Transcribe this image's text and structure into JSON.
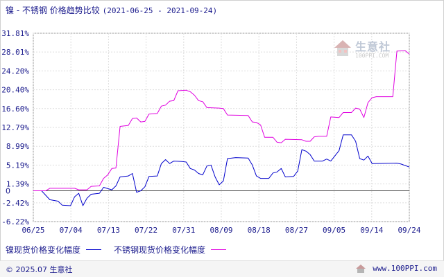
{
  "header": {
    "title": "镍 - 不锈钢 价格趋势比较",
    "date_range": "(2021-06-25 - 2021-09-24)"
  },
  "watermark": {
    "brand": "生意社",
    "url": "100PPI.COM"
  },
  "legend": {
    "items": [
      {
        "label": "镍现货价格变化幅度",
        "color": "#0000cc"
      },
      {
        "label": "不锈钢现货价格变化幅度",
        "color": "#e000e0"
      }
    ]
  },
  "footer": {
    "copyright": "© 2025.07 生意社",
    "site": "www.100PPI.com"
  },
  "chart_data": {
    "type": "line",
    "ylim": [
      -6.22,
      31.81
    ],
    "y_ticks": [
      "31.81%",
      "28.01%",
      "24.20%",
      "20.40%",
      "16.60%",
      "12.79%",
      "8.99%",
      "5.19%",
      "1.39%",
      "-2.42%",
      "-6.22%"
    ],
    "y_tick_values": [
      31.81,
      28.01,
      24.2,
      20.4,
      16.6,
      12.79,
      8.99,
      5.19,
      1.39,
      -2.42,
      -6.22
    ],
    "zero_label": "0",
    "x_ticks": [
      "06/25",
      "07/04",
      "07/13",
      "07/22",
      "07/31",
      "08/09",
      "08/18",
      "08/27",
      "09/05",
      "09/14",
      "09/24"
    ],
    "x_range": [
      "2021-06-25",
      "2021-09-24"
    ],
    "grid": true,
    "series": [
      {
        "name": "镍现货价格变化幅度",
        "color": "#0000cc",
        "points": [
          [
            "2021-06-25",
            0
          ],
          [
            "2021-06-27",
            0
          ],
          [
            "2021-06-29",
            -1.8
          ],
          [
            "2021-07-01",
            -2.1
          ],
          [
            "2021-07-02",
            -2.9
          ],
          [
            "2021-07-04",
            -3.0
          ],
          [
            "2021-07-05",
            -1.2
          ],
          [
            "2021-07-06",
            -0.5
          ],
          [
            "2021-07-07",
            -3.0
          ],
          [
            "2021-07-08",
            -1.5
          ],
          [
            "2021-07-09",
            -0.7
          ],
          [
            "2021-07-11",
            -0.5
          ],
          [
            "2021-07-12",
            0.7
          ],
          [
            "2021-07-14",
            0.2
          ],
          [
            "2021-07-15",
            1.0
          ],
          [
            "2021-07-16",
            2.8
          ],
          [
            "2021-07-18",
            3.0
          ],
          [
            "2021-07-19",
            3.5
          ],
          [
            "2021-07-20",
            -0.3
          ],
          [
            "2021-07-21",
            0
          ],
          [
            "2021-07-22",
            0.8
          ],
          [
            "2021-07-23",
            2.9
          ],
          [
            "2021-07-25",
            3.0
          ],
          [
            "2021-07-26",
            5.5
          ],
          [
            "2021-07-27",
            6.3
          ],
          [
            "2021-07-28",
            5.5
          ],
          [
            "2021-07-29",
            6.0
          ],
          [
            "2021-07-31",
            5.9
          ],
          [
            "2021-08-01",
            5.8
          ],
          [
            "2021-08-02",
            4.5
          ],
          [
            "2021-08-03",
            4.2
          ],
          [
            "2021-08-04",
            3.5
          ],
          [
            "2021-08-05",
            3.2
          ],
          [
            "2021-08-06",
            5.0
          ],
          [
            "2021-08-07",
            5.2
          ],
          [
            "2021-08-08",
            2.8
          ],
          [
            "2021-08-09",
            1.2
          ],
          [
            "2021-08-10",
            2.0
          ],
          [
            "2021-08-11",
            6.5
          ],
          [
            "2021-08-13",
            6.7
          ],
          [
            "2021-08-16",
            6.6
          ],
          [
            "2021-08-17",
            5.2
          ],
          [
            "2021-08-18",
            3.0
          ],
          [
            "2021-08-19",
            2.5
          ],
          [
            "2021-08-21",
            2.5
          ],
          [
            "2021-08-22",
            3.6
          ],
          [
            "2021-08-23",
            3.8
          ],
          [
            "2021-08-24",
            4.5
          ],
          [
            "2021-08-25",
            2.8
          ],
          [
            "2021-08-27",
            2.9
          ],
          [
            "2021-08-28",
            4.0
          ],
          [
            "2021-08-29",
            8.3
          ],
          [
            "2021-08-30",
            8.0
          ],
          [
            "2021-08-31",
            7.3
          ],
          [
            "2021-09-01",
            6.0
          ],
          [
            "2021-09-03",
            6.0
          ],
          [
            "2021-09-04",
            6.4
          ],
          [
            "2021-09-05",
            6.0
          ],
          [
            "2021-09-07",
            8.1
          ],
          [
            "2021-09-08",
            11.3
          ],
          [
            "2021-09-10",
            11.3
          ],
          [
            "2021-09-11",
            10.0
          ],
          [
            "2021-09-12",
            6.5
          ],
          [
            "2021-09-13",
            6.2
          ],
          [
            "2021-09-14",
            7.0
          ],
          [
            "2021-09-15",
            5.5
          ],
          [
            "2021-09-21",
            5.6
          ],
          [
            "2021-09-22",
            5.4
          ],
          [
            "2021-09-24",
            4.8
          ]
        ]
      },
      {
        "name": "不锈钢现货价格变化幅度",
        "color": "#e000e0",
        "points": [
          [
            "2021-06-25",
            0
          ],
          [
            "2021-06-28",
            0
          ],
          [
            "2021-06-29",
            0.5
          ],
          [
            "2021-07-05",
            0.5
          ],
          [
            "2021-07-06",
            0.2
          ],
          [
            "2021-07-08",
            0.2
          ],
          [
            "2021-07-09",
            0.9
          ],
          [
            "2021-07-11",
            1.0
          ],
          [
            "2021-07-12",
            2.5
          ],
          [
            "2021-07-13",
            3.2
          ],
          [
            "2021-07-14",
            4.5
          ],
          [
            "2021-07-15",
            4.6
          ],
          [
            "2021-07-16",
            13.0
          ],
          [
            "2021-07-18",
            13.2
          ],
          [
            "2021-07-19",
            14.6
          ],
          [
            "2021-07-20",
            14.7
          ],
          [
            "2021-07-21",
            13.9
          ],
          [
            "2021-07-22",
            14.0
          ],
          [
            "2021-07-23",
            15.5
          ],
          [
            "2021-07-25",
            15.6
          ],
          [
            "2021-07-26",
            17.1
          ],
          [
            "2021-07-27",
            17.3
          ],
          [
            "2021-07-28",
            18.1
          ],
          [
            "2021-07-29",
            18.2
          ],
          [
            "2021-07-30",
            20.2
          ],
          [
            "2021-08-01",
            20.3
          ],
          [
            "2021-08-02",
            20.0
          ],
          [
            "2021-08-03",
            19.3
          ],
          [
            "2021-08-04",
            18.2
          ],
          [
            "2021-08-05",
            18.0
          ],
          [
            "2021-08-06",
            16.8
          ],
          [
            "2021-08-09",
            16.7
          ],
          [
            "2021-08-10",
            16.6
          ],
          [
            "2021-08-11",
            15.3
          ],
          [
            "2021-08-16",
            15.2
          ],
          [
            "2021-08-17",
            13.9
          ],
          [
            "2021-08-18",
            13.8
          ],
          [
            "2021-08-19",
            13.3
          ],
          [
            "2021-08-20",
            10.8
          ],
          [
            "2021-08-22",
            10.8
          ],
          [
            "2021-08-23",
            9.8
          ],
          [
            "2021-08-24",
            9.7
          ],
          [
            "2021-08-25",
            10.4
          ],
          [
            "2021-08-29",
            10.3
          ],
          [
            "2021-08-30",
            10.0
          ],
          [
            "2021-08-31",
            10.0
          ],
          [
            "2021-09-01",
            10.9
          ],
          [
            "2021-09-02",
            11.0
          ],
          [
            "2021-09-04",
            11.0
          ],
          [
            "2021-09-05",
            14.9
          ],
          [
            "2021-09-07",
            14.8
          ],
          [
            "2021-09-08",
            15.8
          ],
          [
            "2021-09-10",
            15.8
          ],
          [
            "2021-09-11",
            16.7
          ],
          [
            "2021-09-12",
            16.5
          ],
          [
            "2021-09-13",
            14.8
          ],
          [
            "2021-09-14",
            17.8
          ],
          [
            "2021-09-15",
            18.8
          ],
          [
            "2021-09-16",
            19.0
          ],
          [
            "2021-09-20",
            19.0
          ],
          [
            "2021-09-21",
            28.2
          ],
          [
            "2021-09-23",
            28.3
          ],
          [
            "2021-09-24",
            27.6
          ]
        ]
      }
    ]
  }
}
